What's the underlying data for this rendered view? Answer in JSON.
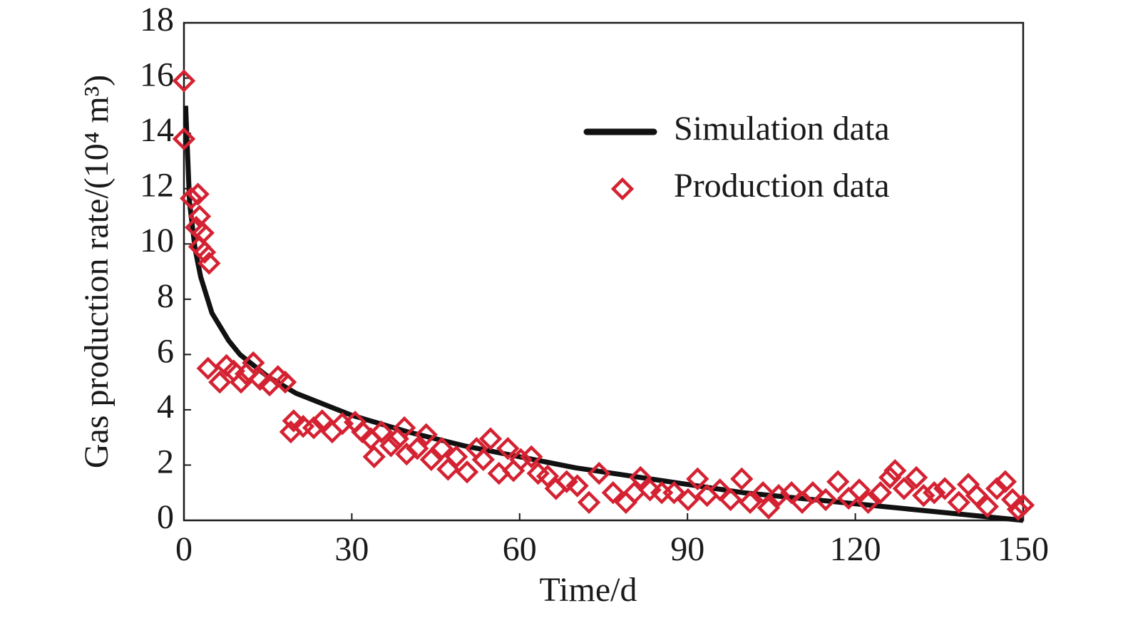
{
  "chart_data": {
    "type": "line",
    "xlabel": "Time/d",
    "ylabel": "Gas production rate/(10⁴ m³)",
    "xlim": [
      0,
      150
    ],
    "xticks": [
      0,
      30,
      60,
      90,
      120,
      150
    ],
    "ylim": [
      0,
      18
    ],
    "yticks": [
      0,
      2,
      4,
      6,
      8,
      10,
      12,
      14,
      16,
      18
    ],
    "legend": "upper right",
    "series": [
      {
        "name": "Simulation data",
        "type": "line",
        "color": "#111111",
        "x": [
          0.3,
          1,
          2,
          3,
          5,
          8,
          10,
          15,
          20,
          30,
          40,
          50,
          60,
          70,
          80,
          90,
          100,
          110,
          120,
          130,
          140,
          150
        ],
        "values": [
          15,
          11.5,
          9.8,
          8.8,
          7.5,
          6.5,
          6,
          5.2,
          4.6,
          3.8,
          3.2,
          2.7,
          2.3,
          1.9,
          1.6,
          1.3,
          1.0,
          0.8,
          0.6,
          0.4,
          0.2,
          0
        ]
      },
      {
        "name": "Production data",
        "type": "scatter",
        "marker": "diamond",
        "color": "#d42232",
        "x": [
          0,
          0,
          2.5,
          1.3,
          2.8,
          2.2,
          3.4,
          2.8,
          3.7,
          4.5,
          4.3,
          6.4,
          7.6,
          8.9,
          10.2,
          11.1,
          12.4,
          13.6,
          15.3,
          16.8,
          18.1,
          19.1,
          19.6,
          21.3,
          23.2,
          24.7,
          26.5,
          28.3,
          30.6,
          31.9,
          33.4,
          34.0,
          35.3,
          37.0,
          38.2,
          39.4,
          39.8,
          41.7,
          43.3,
          44.2,
          46.1,
          47.2,
          48.7,
          50.6,
          52.3,
          53.5,
          54.8,
          56.3,
          57.9,
          58.9,
          60.2,
          62.1,
          63.3,
          65.0,
          66.5,
          68.4,
          70.3,
          72.4,
          74.2,
          76.7,
          79.0,
          80.5,
          81.6,
          83.3,
          85.4,
          87.6,
          90.1,
          91.8,
          93.5,
          95.8,
          97.7,
          99.7,
          101.2,
          103.5,
          104.5,
          106.3,
          108.6,
          110.5,
          112.4,
          114.7,
          116.9,
          118.8,
          120.7,
          122.3,
          124.5,
          126.2,
          127.1,
          128.7,
          130.9,
          132.2,
          134.1,
          136.0,
          138.5,
          140.2,
          141.7,
          143.6,
          145.3,
          146.8,
          148.1,
          149.1,
          150
        ],
        "values": [
          15.9,
          13.8,
          11.8,
          11.65,
          11.0,
          10.6,
          10.4,
          9.9,
          9.7,
          9.3,
          5.5,
          5.0,
          5.6,
          5.4,
          5.0,
          5.3,
          5.7,
          5.1,
          4.9,
          5.2,
          5.0,
          3.2,
          3.6,
          3.4,
          3.35,
          3.6,
          3.2,
          3.5,
          3.55,
          3.2,
          2.95,
          2.3,
          3.2,
          2.7,
          2.95,
          3.35,
          2.4,
          2.6,
          3.1,
          2.2,
          2.6,
          1.85,
          2.3,
          1.75,
          2.6,
          2.2,
          2.95,
          1.7,
          2.6,
          1.8,
          2.2,
          2.3,
          1.7,
          1.6,
          1.15,
          1.4,
          1.25,
          0.65,
          1.7,
          1.0,
          0.65,
          1.0,
          1.55,
          1.1,
          1.0,
          1.0,
          0.75,
          1.5,
          0.9,
          1.1,
          0.75,
          1.5,
          0.65,
          1.0,
          0.45,
          0.9,
          1.0,
          0.65,
          1.0,
          0.75,
          1.4,
          0.8,
          1.1,
          0.65,
          1.0,
          1.55,
          1.8,
          1.15,
          1.55,
          0.9,
          1.0,
          1.15,
          0.65,
          1.3,
          0.9,
          0.5,
          1.15,
          1.4,
          0.75,
          0.4,
          0.55
        ]
      }
    ]
  }
}
